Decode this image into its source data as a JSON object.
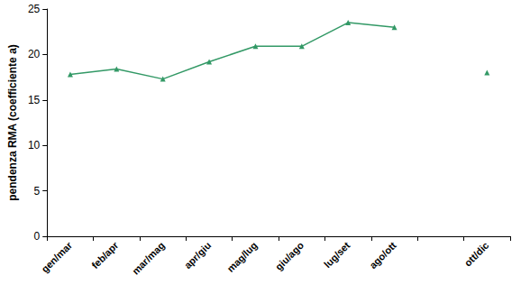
{
  "chart_data": {
    "type": "line",
    "y_label": "pendenza RMA (coefficiente a)",
    "categories": [
      "gen/mar",
      "feb/apr",
      "mar/mag",
      "apr/giu",
      "mag/lug",
      "giu/ago",
      "lug/set",
      "ago/ott",
      null,
      "ott/dic"
    ],
    "values": [
      17.8,
      18.4,
      17.3,
      19.2,
      20.9,
      20.9,
      23.5,
      23.0,
      null,
      18.0
    ],
    "color": "#339966",
    "marker": "triangle",
    "line_style": "solid",
    "ylim": [
      0,
      25
    ],
    "yticks": [
      0,
      5,
      10,
      15,
      20,
      25
    ],
    "grid": false
  }
}
